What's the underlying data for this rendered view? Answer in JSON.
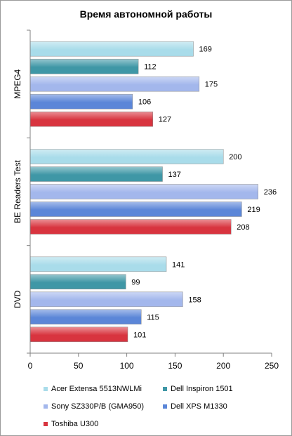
{
  "chart_data": {
    "type": "bar",
    "orientation": "horizontal",
    "title": "Время автономной работы",
    "categories": [
      "MPEG4",
      "BE Readers Test",
      "DVD"
    ],
    "series": [
      {
        "name": "Acer Extensa 5513NWLMi",
        "color": "#a9dcea",
        "values": [
          169,
          200,
          141
        ]
      },
      {
        "name": "Dell Inspiron 1501",
        "color": "#3f97a6",
        "values": [
          112,
          137,
          99
        ]
      },
      {
        "name": "Sony SZ330P/B (GMA950)",
        "color": "#a3b7ec",
        "values": [
          175,
          236,
          158
        ]
      },
      {
        "name": "Dell XPS M1330",
        "color": "#5b86d8",
        "values": [
          106,
          219,
          115
        ]
      },
      {
        "name": "Toshiba U300",
        "color": "#d8343f",
        "values": [
          127,
          208,
          101
        ]
      }
    ],
    "xlim": [
      0,
      250
    ],
    "xticks": [
      0,
      50,
      100,
      150,
      200,
      250
    ],
    "grid": false,
    "legend_position": "bottom"
  }
}
